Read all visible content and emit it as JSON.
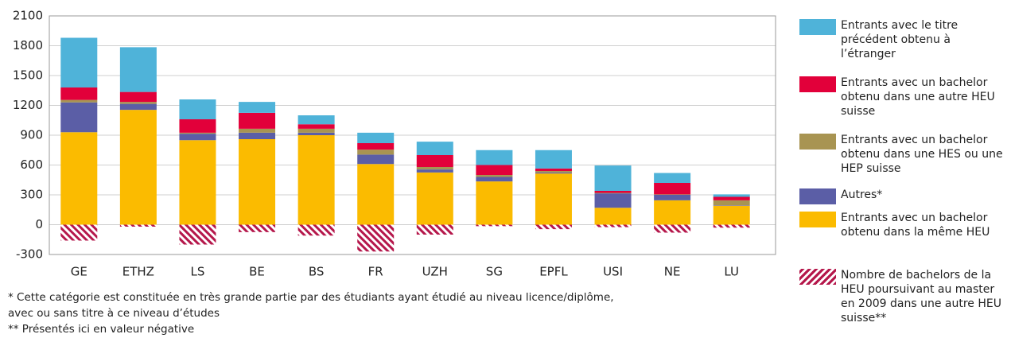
{
  "chart_data": {
    "type": "stacked-bar",
    "categories": [
      "GE",
      "ETHZ",
      "LS",
      "BE",
      "BS",
      "FR",
      "UZH",
      "SG",
      "EPFL",
      "USI",
      "NE",
      "LU"
    ],
    "series": [
      {
        "name": "Entrants avec le titre précédent obtenu à l’étranger",
        "color": "#4fb3d9",
        "values": [
          500,
          450,
          200,
          110,
          90,
          105,
          135,
          150,
          185,
          255,
          100,
          25
        ]
      },
      {
        "name": "Entrants avec un bachelor obtenu dans une autre HEU suisse",
        "color": "#e2003a",
        "values": [
          125,
          100,
          135,
          160,
          45,
          65,
          120,
          100,
          25,
          20,
          115,
          35
        ]
      },
      {
        "name": "Entrants avec un bachelor obtenu dans une HES ou une HEP suisse",
        "color": "#a89452",
        "values": [
          25,
          20,
          10,
          40,
          40,
          50,
          25,
          20,
          15,
          5,
          5,
          50
        ]
      },
      {
        "name": "Autres*",
        "color": "#5b5ea6",
        "values": [
          300,
          60,
          65,
          65,
          25,
          95,
          30,
          45,
          10,
          145,
          55,
          5
        ]
      },
      {
        "name": "Entrants avec un bachelor obtenu dans la même HEU",
        "color": "#fbbb00",
        "values": [
          930,
          1155,
          850,
          860,
          900,
          610,
          525,
          435,
          515,
          170,
          245,
          190
        ]
      },
      {
        "name": "Nombre de bachelors de la HEU poursuivant au master en 2009 dans une autre HEU suisse**",
        "color": "#b5174b",
        "hatch": true,
        "values": [
          -160,
          -20,
          -200,
          -75,
          -110,
          -270,
          -100,
          -15,
          -45,
          -25,
          -80,
          -30
        ]
      }
    ],
    "ylim": [
      -300,
      2100
    ],
    "yticks": [
      -300,
      0,
      300,
      600,
      900,
      1200,
      1500,
      1800,
      2100
    ],
    "grid": true,
    "notes": [
      "* Cette catégorie est constituée en très grande partie par des étudiants ayant étudié au niveau licence/diplôme,",
      "avec ou sans titre à ce niveau d’études",
      "** Présentés ici en valeur négative"
    ]
  }
}
